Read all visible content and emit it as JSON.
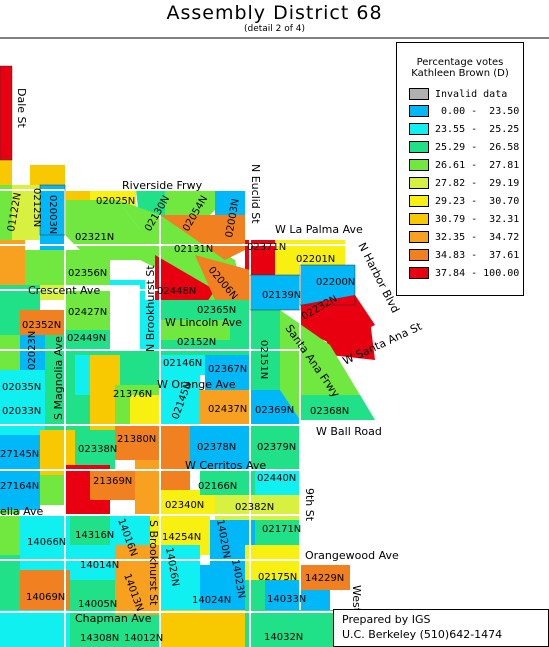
{
  "title": "Assembly District 68",
  "subtitle": "(detail 2 of 4)",
  "legend": {
    "title_line1": "Percentage votes",
    "title_line2": "Kathleen Brown (D)",
    "items": [
      {
        "label": "Invalid data",
        "color": "#b0b0b0"
      },
      {
        "label": " 0.00 -  23.50",
        "color": "#00b8f8"
      },
      {
        "label": "23.55 -  25.25",
        "color": "#10f0f0"
      },
      {
        "label": "25.29 -  26.58",
        "color": "#20e088"
      },
      {
        "label": "26.61 -  27.81",
        "color": "#70e840"
      },
      {
        "label": "27.82 -  29.19",
        "color": "#d8f040"
      },
      {
        "label": "29.23 -  30.70",
        "color": "#f8f010"
      },
      {
        "label": "30.79 -  32.31",
        "color": "#f8c800"
      },
      {
        "label": "32.35 -  34.72",
        "color": "#f8a020"
      },
      {
        "label": "34.83 -  37.61",
        "color": "#f08020"
      },
      {
        "label": "37.84 - 100.00",
        "color": "#e80010"
      }
    ]
  },
  "streets": {
    "dale": "Dale St",
    "riverside": "Riverside Frwy",
    "euclid": "N Euclid St",
    "lapalma": "W La Palma Ave",
    "harbor": "N Harbor Blvd",
    "crescent": "Crescent Ave",
    "brookhurst": "N Brookhurst St",
    "lincoln": "W Lincoln Ave",
    "santaana": "W Santa Ana St",
    "santaanafrwy": "Santa Ana Frwy",
    "magnolia": "S Magnolia Ave",
    "orange": "W Orange Ave",
    "ballroad": "W Ball Road",
    "cerritos": "W Cerritos Ave",
    "ninth": "9th St",
    "orangewood": "Orangewood Ave",
    "brookhurst2": "S Brookhurst St",
    "chapman": "Chapman Ave",
    "west": "West",
    "ella": "ella Ave"
  },
  "precincts": [
    "02025N",
    "02130N",
    "02054N",
    "02003N",
    "02321N",
    "02131N",
    "02371N",
    "02201N",
    "02356N",
    "02448N",
    "02006N",
    "02139N",
    "02200N",
    "02427N",
    "02365N",
    "02232N",
    "02352N",
    "02449N",
    "02152N",
    "02023N",
    "02146N",
    "02367N",
    "02151N",
    "02035N",
    "02145N",
    "02437N",
    "02369N",
    "02368N",
    "02033N",
    "21376N",
    "02338N",
    "21380N",
    "02378N",
    "02379N",
    "27145N",
    "21369N",
    "02166N",
    "02440N",
    "27164N",
    "02340N",
    "02382N",
    "14066N",
    "14316N",
    "14016N",
    "14254N",
    "14020N",
    "02171N",
    "14014N",
    "14026N",
    "14023N",
    "14229N",
    "02175N",
    "14069N",
    "14005N",
    "14013N",
    "14024N",
    "14033N",
    "14308N",
    "14012N",
    "14032N",
    "02125N",
    "02003N",
    "01122N"
  ],
  "credit": {
    "line1": "Prepared by IGS",
    "line2": "U.C. Berkeley   (510)642-1474"
  }
}
